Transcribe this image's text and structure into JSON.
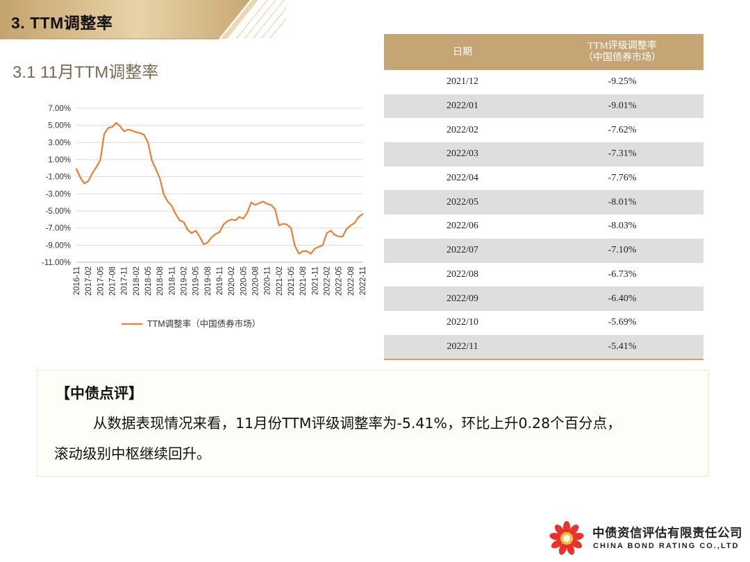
{
  "header": {
    "section_title": "3. TTM调整率",
    "sub_title": "3.1 11月TTM调整率"
  },
  "colors": {
    "accent_gold": "#c5a574",
    "line_orange": "#ed7d31",
    "row_gray": "#dedede"
  },
  "chart_data": {
    "type": "line",
    "title": "",
    "xlabel": "",
    "ylabel": "",
    "ylim": [
      -11,
      7
    ],
    "y_ticks": [
      "7.00%",
      "5.00%",
      "3.00%",
      "1.00%",
      "-1.00%",
      "-3.00%",
      "-5.00%",
      "-7.00%",
      "-9.00%",
      "-11.00%"
    ],
    "x_tick_labels": [
      "2016-11",
      "2017-02",
      "2017-05",
      "2017-08",
      "2017-11",
      "2018-02",
      "2018-05",
      "2018-08",
      "2018-11",
      "2019-02",
      "2019-05",
      "2019-08",
      "2019-11",
      "2020-02",
      "2020-05",
      "2020-08",
      "2020-11",
      "2021-02",
      "2021-05",
      "2021-08",
      "2021-11",
      "2022-02",
      "2022-05",
      "2022-08",
      "2022-11"
    ],
    "legend": "TTM调整率（中国债券市场）",
    "legend_position": "bottom",
    "series": [
      {
        "name": "TTM调整率（中国债券市场）",
        "values": [
          -0.1,
          -1.1,
          -1.8,
          -1.5,
          -0.6,
          0.1,
          0.9,
          4.0,
          4.7,
          4.8,
          5.3,
          4.9,
          4.3,
          4.5,
          4.4,
          4.2,
          4.1,
          3.9,
          3.0,
          0.9,
          -0.1,
          -1.2,
          -3.1,
          -3.9,
          -4.4,
          -5.4,
          -6.1,
          -6.3,
          -7.2,
          -7.6,
          -7.3,
          -8.0,
          -8.9,
          -8.7,
          -8.1,
          -7.7,
          -7.5,
          -6.6,
          -6.2,
          -6.0,
          -6.1,
          -5.7,
          -5.9,
          -5.2,
          -4.0,
          -4.3,
          -4.1,
          -3.9,
          -4.2,
          -4.3,
          -4.8,
          -6.7,
          -6.5,
          -6.6,
          -7.0,
          -9.1,
          -10.0,
          -9.7,
          -9.7,
          -10.0,
          -9.4,
          -9.2,
          -9.0,
          -7.6,
          -7.3,
          -7.8,
          -8.0,
          -8.0,
          -7.1,
          -6.7,
          -6.4,
          -5.7,
          -5.4
        ]
      }
    ]
  },
  "table": {
    "header_date": "日期",
    "header_rate_line1": "TTM评级调整率",
    "header_rate_line2": "（中国债券市场）",
    "rows": [
      {
        "date": "2021/12",
        "rate": "-9.25%"
      },
      {
        "date": "2022/01",
        "rate": "-9.01%"
      },
      {
        "date": "2022/02",
        "rate": "-7.62%"
      },
      {
        "date": "2022/03",
        "rate": "-7.31%"
      },
      {
        "date": "2022/04",
        "rate": "-7.76%"
      },
      {
        "date": "2022/05",
        "rate": "-8.01%"
      },
      {
        "date": "2022/06",
        "rate": "-8.03%"
      },
      {
        "date": "2022/07",
        "rate": "-7.10%"
      },
      {
        "date": "2022/08",
        "rate": "-6.73%"
      },
      {
        "date": "2022/09",
        "rate": "-6.40%"
      },
      {
        "date": "2022/10",
        "rate": "-5.69%"
      },
      {
        "date": "2022/11",
        "rate": "-5.41%"
      }
    ]
  },
  "comment": {
    "title": "【中债点评】",
    "text_line1": "从数据表现情况来看，11月份TTM评级调整率为-5.41%，环比上升0.28个百分点，",
    "text_line2": "滚动级别中枢继续回升。"
  },
  "logo": {
    "name_cn": "中债资信评估有限责任公司",
    "name_en": "CHINA BOND RATING CO.,LTD"
  }
}
